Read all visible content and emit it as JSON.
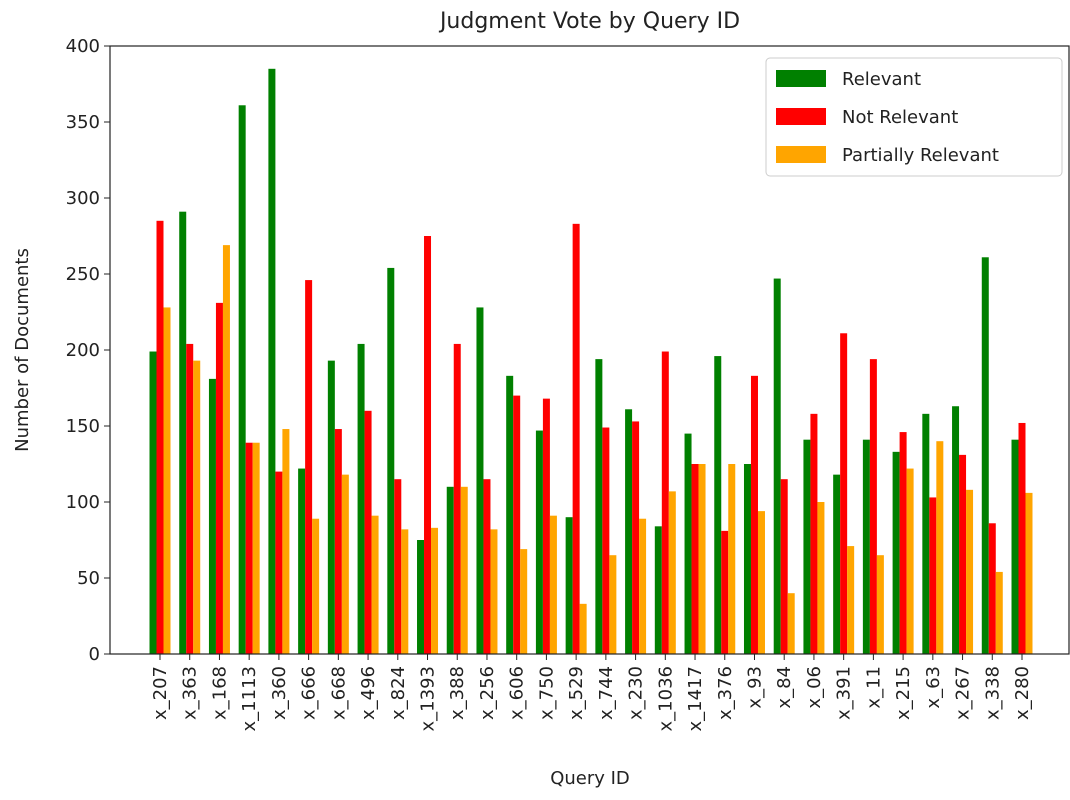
{
  "chart_data": {
    "type": "bar",
    "title": "Judgment Vote by Query ID",
    "x_label": "Query ID",
    "y_label": "Number of Documents",
    "categories": [
      "x_207",
      "x_363",
      "x_168",
      "x_1113",
      "x_360",
      "x_666",
      "x_668",
      "x_496",
      "x_824",
      "x_1393",
      "x_388",
      "x_256",
      "x_606",
      "x_750",
      "x_529",
      "x_744",
      "x_230",
      "x_1036",
      "x_1417",
      "x_376",
      "x_93",
      "x_84",
      "x_06",
      "x_391",
      "x_11",
      "x_215",
      "x_63",
      "x_267",
      "x_338",
      "x_280"
    ],
    "series": [
      {
        "name": "Relevant",
        "color": "#008000",
        "values": [
          199,
          291,
          181,
          361,
          385,
          122,
          193,
          204,
          254,
          75,
          110,
          228,
          183,
          147,
          90,
          194,
          161,
          84,
          145,
          196,
          125,
          247,
          141,
          118,
          141,
          133,
          158,
          163,
          261,
          141
        ]
      },
      {
        "name": "Not Relevant",
        "color": "#ff0000",
        "values": [
          285,
          204,
          231,
          139,
          120,
          246,
          148,
          160,
          115,
          275,
          204,
          115,
          170,
          168,
          283,
          149,
          153,
          199,
          125,
          81,
          183,
          115,
          158,
          211,
          194,
          146,
          103,
          131,
          86,
          152
        ]
      },
      {
        "name": "Partially Relevant",
        "color": "#ffa500",
        "values": [
          228,
          193,
          269,
          139,
          148,
          89,
          118,
          91,
          82,
          83,
          110,
          82,
          69,
          91,
          33,
          65,
          89,
          107,
          125,
          125,
          94,
          40,
          100,
          71,
          65,
          122,
          140,
          108,
          54,
          106
        ]
      }
    ],
    "ylim": [
      0,
      400
    ],
    "yticks": [
      0,
      50,
      100,
      150,
      200,
      250,
      300,
      350,
      400
    ],
    "legend": "upper right"
  }
}
